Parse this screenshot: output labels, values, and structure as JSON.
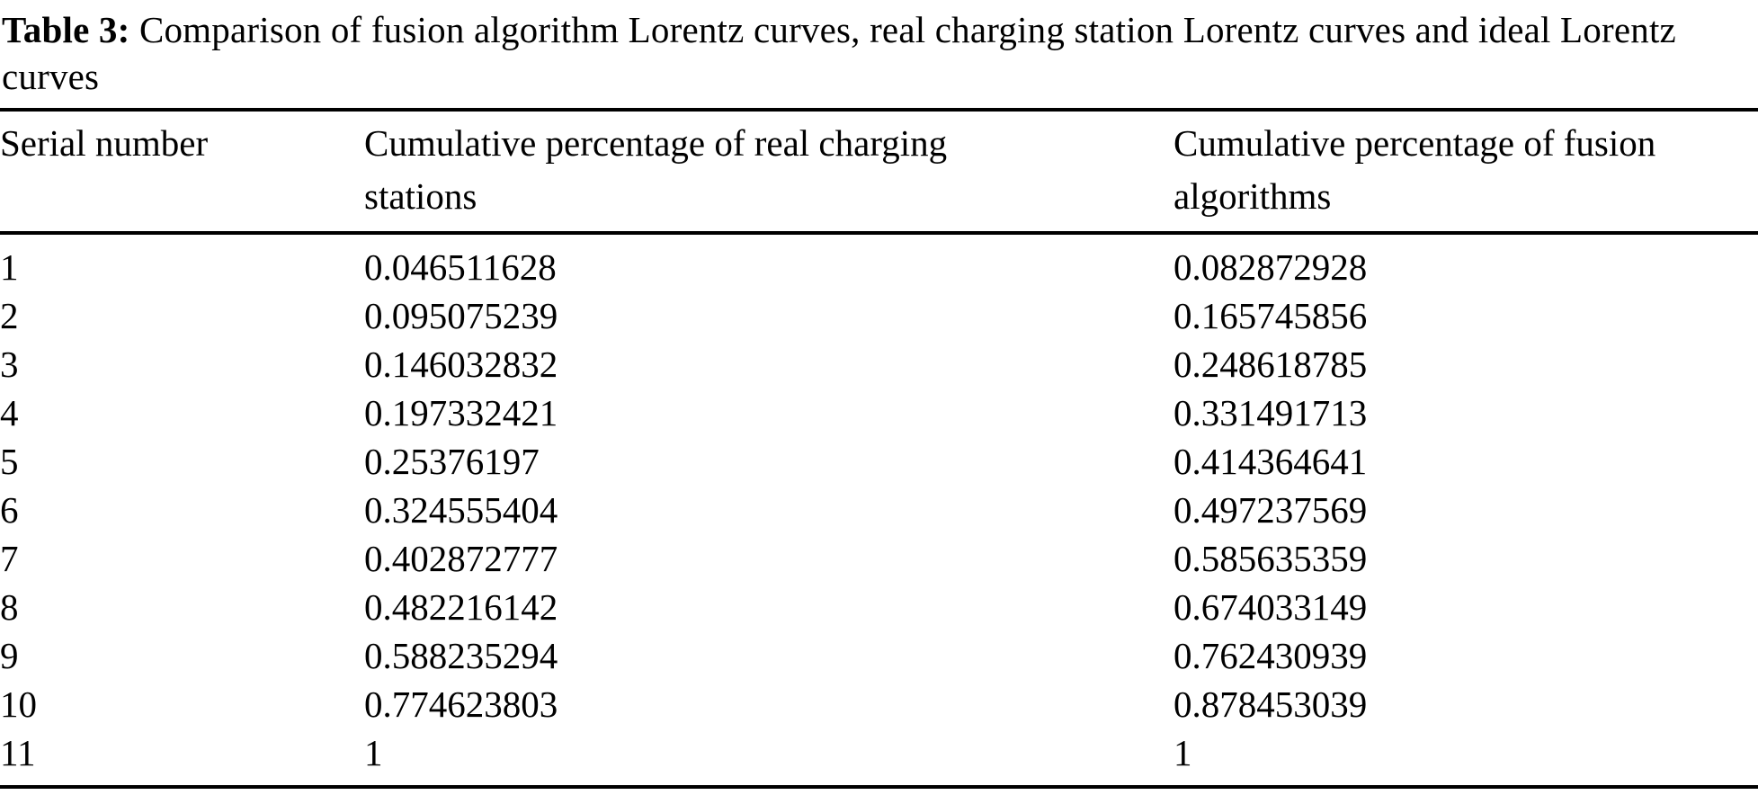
{
  "caption": {
    "label": "Table 3:",
    "text": "Comparison of fusion algorithm Lorentz curves, real charging station Lorentz curves and ideal Lorentz curves"
  },
  "table": {
    "columns": [
      "Serial number",
      "Cumulative percentage of real charging stations",
      "Cumulative percentage of fusion algorithms"
    ],
    "rows": [
      [
        "1",
        "0.046511628",
        "0.082872928"
      ],
      [
        "2",
        "0.095075239",
        "0.165745856"
      ],
      [
        "3",
        "0.146032832",
        "0.248618785"
      ],
      [
        "4",
        "0.197332421",
        "0.331491713"
      ],
      [
        "5",
        "0.25376197",
        "0.414364641"
      ],
      [
        "6",
        "0.324555404",
        "0.497237569"
      ],
      [
        "7",
        "0.402872777",
        "0.585635359"
      ],
      [
        "8",
        "0.482216142",
        "0.674033149"
      ],
      [
        "9",
        "0.588235294",
        "0.762430939"
      ],
      [
        "10",
        "0.774623803",
        "0.878453039"
      ],
      [
        "11",
        "1",
        "1"
      ]
    ]
  },
  "colors": {
    "text": "#000000",
    "background": "#ffffff",
    "rule": "#000000"
  }
}
